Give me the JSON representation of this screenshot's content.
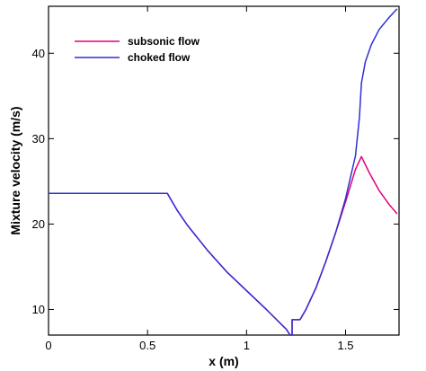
{
  "chart_data": {
    "type": "line",
    "title": "",
    "xlabel": "x (m)",
    "ylabel": "Mixture velocity (m/s)",
    "xlim": [
      0,
      1.77
    ],
    "ylim": [
      7,
      45.5
    ],
    "xticks": [
      {
        "value": 0,
        "label": "0"
      },
      {
        "value": 0.5,
        "label": "0.5"
      },
      {
        "value": 1,
        "label": "1"
      },
      {
        "value": 1.5,
        "label": "1.5"
      }
    ],
    "yticks": [
      {
        "value": 10,
        "label": "10"
      },
      {
        "value": 20,
        "label": "20"
      },
      {
        "value": 30,
        "label": "30"
      },
      {
        "value": 40,
        "label": "40"
      }
    ],
    "grid": false,
    "legend_position": "top-left",
    "series": [
      {
        "name": "subsonic flow",
        "color": "#e0007a",
        "points": [
          [
            0,
            23.6
          ],
          [
            0.6,
            23.6
          ],
          [
            0.65,
            21.6
          ],
          [
            0.7,
            19.9
          ],
          [
            0.8,
            17.0
          ],
          [
            0.9,
            14.4
          ],
          [
            1.0,
            12.2
          ],
          [
            1.1,
            10.0
          ],
          [
            1.2,
            7.7
          ],
          [
            1.22,
            7.0
          ],
          [
            1.23,
            7.0
          ],
          [
            1.23,
            8.8
          ],
          [
            1.27,
            8.8
          ],
          [
            1.3,
            10.0
          ],
          [
            1.35,
            12.5
          ],
          [
            1.4,
            15.6
          ],
          [
            1.45,
            19.0
          ],
          [
            1.5,
            22.6
          ],
          [
            1.55,
            26.4
          ],
          [
            1.58,
            27.9
          ],
          [
            1.62,
            26.0
          ],
          [
            1.67,
            23.9
          ],
          [
            1.72,
            22.3
          ],
          [
            1.76,
            21.2
          ]
        ]
      },
      {
        "name": "choked flow",
        "color": "#2f2fd6",
        "points": [
          [
            0,
            23.6
          ],
          [
            0.6,
            23.6
          ],
          [
            0.65,
            21.6
          ],
          [
            0.7,
            19.9
          ],
          [
            0.8,
            17.0
          ],
          [
            0.9,
            14.4
          ],
          [
            1.0,
            12.2
          ],
          [
            1.1,
            10.0
          ],
          [
            1.2,
            7.7
          ],
          [
            1.22,
            7.0
          ],
          [
            1.23,
            7.0
          ],
          [
            1.23,
            8.8
          ],
          [
            1.27,
            8.8
          ],
          [
            1.3,
            10.0
          ],
          [
            1.35,
            12.5
          ],
          [
            1.4,
            15.6
          ],
          [
            1.45,
            19.0
          ],
          [
            1.5,
            23.0
          ],
          [
            1.55,
            28.0
          ],
          [
            1.57,
            32.5
          ],
          [
            1.58,
            36.5
          ],
          [
            1.6,
            39.0
          ],
          [
            1.63,
            41.0
          ],
          [
            1.67,
            42.8
          ],
          [
            1.72,
            44.2
          ],
          [
            1.76,
            45.2
          ]
        ]
      }
    ]
  }
}
